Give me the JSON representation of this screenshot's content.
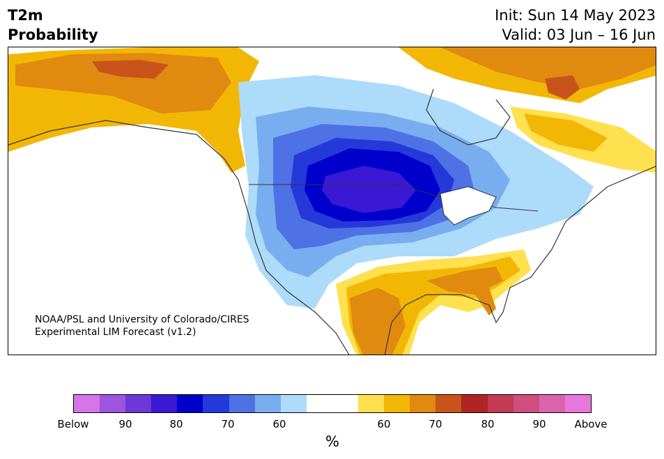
{
  "header": {
    "variable": "T2m",
    "quantity": "Probability",
    "init": "Init: Sun 14 May 2023",
    "valid": "Valid: 03 Jun – 16 Jun"
  },
  "map": {
    "credit_line1": "NOAA/PSL and University of Colorado/CIRES",
    "credit_line2": "Experimental LIM Forecast (v1.2)"
  },
  "colorbar": {
    "unit": "%",
    "colors": [
      "#d575e8",
      "#9e55de",
      "#6c38d8",
      "#3b18d4",
      "#0000cc",
      "#2539db",
      "#4f71e6",
      "#78aef0",
      "#addbfa",
      "#ffffff",
      "#ffffff",
      "#ffe14f",
      "#f2b705",
      "#e08a10",
      "#c8541a",
      "#b02424",
      "#c33a54",
      "#d04e7e",
      "#dd62ae",
      "#e876dc"
    ],
    "ticks": [
      {
        "label": "Below"
      },
      {
        "label": "90"
      },
      {
        "label": "80"
      },
      {
        "label": "70"
      },
      {
        "label": "60"
      },
      {
        "label": "60"
      },
      {
        "label": "70"
      },
      {
        "label": "80"
      },
      {
        "label": "90"
      },
      {
        "label": "Above"
      }
    ]
  }
}
